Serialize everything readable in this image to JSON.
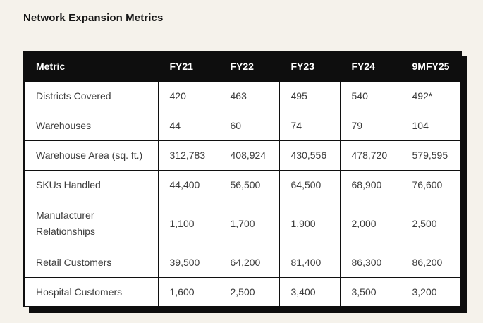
{
  "page": {
    "title": "Network Expansion Metrics"
  },
  "colors": {
    "background": "#f5f2eb",
    "header_bg": "#0e0e0e",
    "header_text": "#ffffff",
    "cell_text": "#3c3c3c",
    "border": "#0e0e0e",
    "cell_bg": "#ffffff"
  },
  "chart_data": {
    "type": "table",
    "title": "Network Expansion Metrics",
    "columns": [
      "Metric",
      "FY21",
      "FY22",
      "FY23",
      "FY24",
      "9MFY25"
    ],
    "rows": [
      {
        "metric": "Districts Covered",
        "values": [
          "420",
          "463",
          "495",
          "540",
          "492*"
        ]
      },
      {
        "metric": "Warehouses",
        "values": [
          "44",
          "60",
          "74",
          "79",
          "104"
        ]
      },
      {
        "metric": "Warehouse Area (sq. ft.)",
        "values": [
          "312,783",
          "408,924",
          "430,556",
          "478,720",
          "579,595"
        ]
      },
      {
        "metric": "SKUs Handled",
        "values": [
          "44,400",
          "56,500",
          "64,500",
          "68,900",
          "76,600"
        ]
      },
      {
        "metric": "Manufacturer Relationships",
        "values": [
          "1,100",
          "1,700",
          "1,900",
          "2,000",
          "2,500"
        ]
      },
      {
        "metric": "Retail Customers",
        "values": [
          "39,500",
          "64,200",
          "81,400",
          "86,300",
          "86,200"
        ]
      },
      {
        "metric": "Hospital Customers",
        "values": [
          "1,600",
          "2,500",
          "3,400",
          "3,500",
          "3,200"
        ]
      }
    ]
  }
}
